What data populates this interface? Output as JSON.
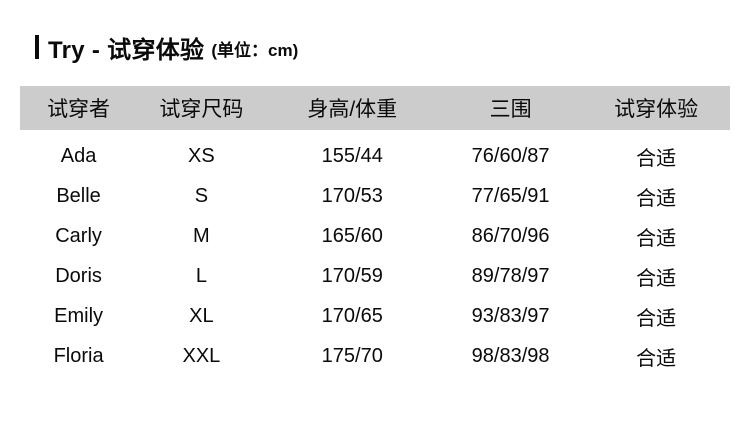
{
  "title": {
    "main": "Try - 试穿体验",
    "unit": "(单位：cm)"
  },
  "table": {
    "headers": [
      "试穿者",
      "试穿尺码",
      "身高/体重",
      "三围",
      "试穿体验"
    ],
    "rows": [
      [
        "Ada",
        "XS",
        "155/44",
        "76/60/87",
        "合适"
      ],
      [
        "Belle",
        "S",
        "170/53",
        "77/65/91",
        "合适"
      ],
      [
        "Carly",
        "M",
        "165/60",
        "86/70/96",
        "合适"
      ],
      [
        "Doris",
        "L",
        "170/59",
        "89/78/97",
        "合适"
      ],
      [
        "Emily",
        "XL",
        "170/65",
        "93/83/97",
        "合适"
      ],
      [
        "Floria",
        "XXL",
        "175/70",
        "98/83/98",
        "合适"
      ]
    ]
  },
  "colors": {
    "header_bg": "#cccccc",
    "text": "#0a0a0a"
  }
}
